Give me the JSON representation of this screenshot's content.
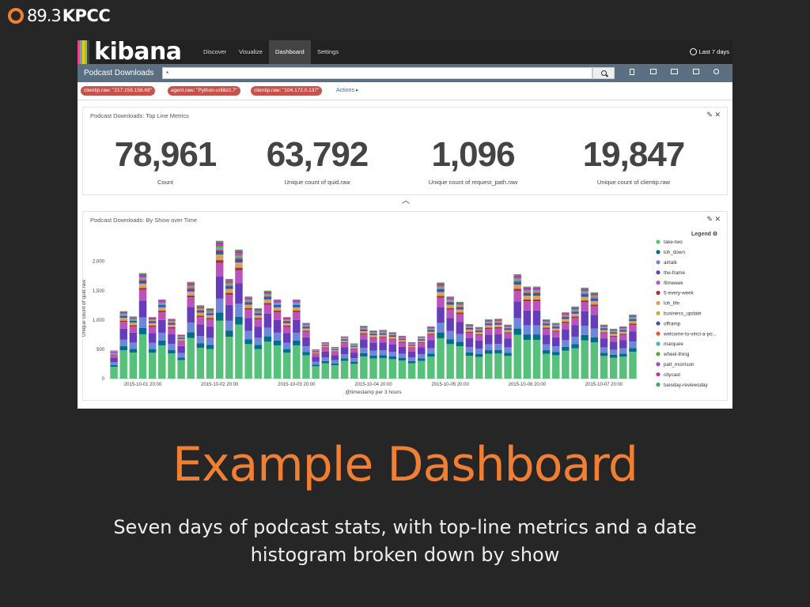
{
  "brand": {
    "num": "89.3",
    "name": "KPCC",
    "ring_color": "#f07f33"
  },
  "kibana": {
    "logo": "kibana",
    "nav": [
      {
        "label": "Discover",
        "active": false
      },
      {
        "label": "Visualize",
        "active": false
      },
      {
        "label": "Dashboard",
        "active": true
      },
      {
        "label": "Settings",
        "active": false
      }
    ],
    "time_range": "Last 7 days",
    "dashboard_title": "Podcast Downloads",
    "query": "*",
    "filters": [
      "clientip.raw: \"217.156.156.69\"",
      "agent.raw: \"Python-urllib/2.7\"",
      "clientip.raw: \"104.172.0.137\""
    ],
    "actions_label": "Actions ▸",
    "toolbar_icons": [
      "new-dashboard-icon",
      "save-icon",
      "open-icon",
      "share-icon",
      "settings-icon"
    ]
  },
  "metrics_panel": {
    "title": "Podcast Downloads: Top Line Metrics",
    "metrics": [
      {
        "value": "78,961",
        "label": "Count"
      },
      {
        "value": "63,792",
        "label": "Unique count of quid.raw"
      },
      {
        "value": "1,096",
        "label": "Unique count of request_path.raw"
      },
      {
        "value": "19,847",
        "label": "Unique count of clientip.raw"
      }
    ]
  },
  "chart_panel": {
    "title": "Podcast Downloads: By Show over Time",
    "legend_title": "Legend"
  },
  "chart_data": {
    "type": "bar",
    "stacked": true,
    "xlabel": "@timestamp per 3 hours",
    "ylabel": "Unique count of quid.raw",
    "ylim": [
      0,
      2400
    ],
    "yticks": [
      "0",
      "500",
      "1,000",
      "1,500",
      "2,000"
    ],
    "ytick_values": [
      0,
      500,
      1000,
      1500,
      2000
    ],
    "x_ticks": [
      {
        "index": 3,
        "label": "2015-10-01 20:00"
      },
      {
        "index": 11,
        "label": "2015-10-02 20:00"
      },
      {
        "index": 19,
        "label": "2015-10-03 20:00"
      },
      {
        "index": 27,
        "label": "2015-10-04 20:00"
      },
      {
        "index": 35,
        "label": "2015-10-05 20:00"
      },
      {
        "index": 43,
        "label": "2015-10-06 20:00"
      },
      {
        "index": 51,
        "label": "2015-10-07 20:00"
      }
    ],
    "totals": [
      480,
      1150,
      1060,
      1800,
      1050,
      1350,
      1020,
      750,
      1650,
      1250,
      1200,
      2350,
      1700,
      2200,
      1400,
      1200,
      1500,
      1350,
      1050,
      1350,
      950,
      500,
      620,
      540,
      720,
      600,
      900,
      820,
      830,
      790,
      730,
      620,
      720,
      890,
      1640,
      1400,
      1310,
      930,
      880,
      1010,
      1020,
      920,
      1780,
      1570,
      1570,
      1010,
      950,
      1130,
      1230,
      1550,
      1470,
      920,
      850,
      890,
      1090
    ],
    "colors": [
      "#57c17b",
      "#006e8a",
      "#6f87d8",
      "#663db8",
      "#bc52bc",
      "#9e3533",
      "#daa05d",
      "#bfaf40",
      "#4150b4",
      "#e15a32",
      "#4db6ac",
      "#65a33d",
      "#8e4fc8",
      "#c0359b",
      "#40a85b"
    ],
    "fractions": [
      0.42,
      0.06,
      0.1,
      0.16,
      0.1,
      0.02,
      0.03,
      0.01,
      0.03,
      0.01,
      0.01,
      0.01,
      0.01,
      0.02,
      0.01
    ],
    "legend": [
      "take-two",
      "loh_down",
      "airtalk",
      "the-frame",
      "filmweek",
      "5-every-week",
      "loh_life",
      "business_update",
      "offramp",
      "welcome-to-vinci-a-po...",
      "marquee",
      "wheel-thing",
      "patt_morrison",
      "citycast",
      "tuesday-reviewsday"
    ],
    "legend_colors": [
      "#57c17b",
      "#006e8a",
      "#6f87d8",
      "#663db8",
      "#bc52bc",
      "#9e3533",
      "#daa05d",
      "#bfaf40",
      "#4150b4",
      "#e15a32",
      "#4db6ac",
      "#65a33d",
      "#8e4fc8",
      "#c0359b",
      "#40a85b"
    ],
    "grid": false,
    "legend_position": "right"
  },
  "slide": {
    "title": "Example Dashboard",
    "subtitle_line1": "Seven days of podcast stats, with top-line metrics and a date",
    "subtitle_line2": "histogram broken down by show"
  }
}
